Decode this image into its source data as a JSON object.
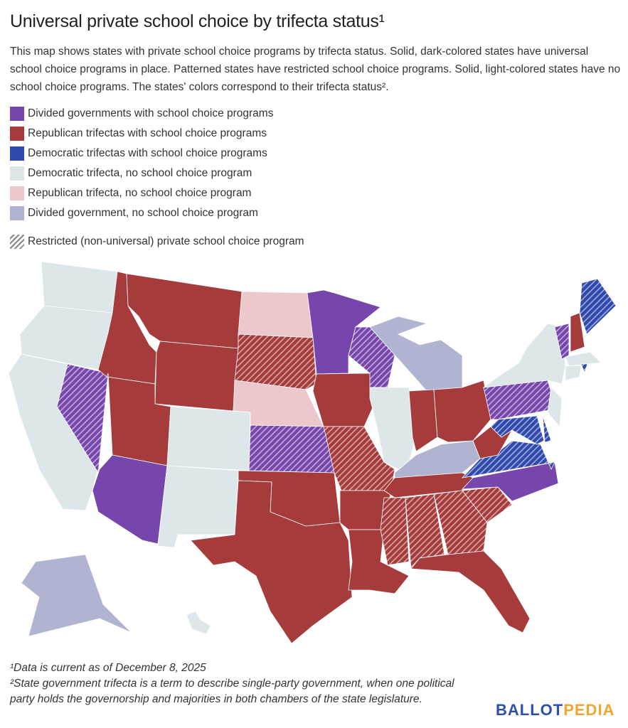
{
  "title": "Universal private school choice by trifecta status¹",
  "description": "This map shows states with private school choice programs by trifecta status. Solid, dark-colored states have universal school choice programs in place. Patterned states have restricted school choice programs. Solid, light-colored states have no school choice programs. The states' colors correspond to their trifecta status².",
  "legend": [
    {
      "key": "div_prog",
      "label": "Divided governments with school choice programs",
      "color": "#7746ad"
    },
    {
      "key": "rep_prog",
      "label": "Republican trifectas with school choice programs",
      "color": "#a63b3c"
    },
    {
      "key": "dem_prog",
      "label": "Democratic trifectas with school choice programs",
      "color": "#3049ad"
    },
    {
      "key": "dem_none",
      "label": "Democratic trifecta, no school choice program",
      "color": "#dde6e9"
    },
    {
      "key": "rep_none",
      "label": "Republican trifecta, no school choice program",
      "color": "#ecc8cc"
    },
    {
      "key": "div_none",
      "label": "Divided government, no school choice program",
      "color": "#b0b4d1"
    }
  ],
  "restricted_label": "Restricted (non-universal) private school choice program",
  "states": {
    "WA": {
      "c": "dem_none",
      "r": false
    },
    "OR": {
      "c": "dem_none",
      "r": false
    },
    "CA": {
      "c": "dem_none",
      "r": false
    },
    "NV": {
      "c": "div_prog",
      "r": true
    },
    "ID": {
      "c": "rep_prog",
      "r": false
    },
    "MT": {
      "c": "rep_prog",
      "r": false
    },
    "WY": {
      "c": "rep_prog",
      "r": false
    },
    "UT": {
      "c": "rep_prog",
      "r": false
    },
    "AZ": {
      "c": "div_prog",
      "r": false
    },
    "CO": {
      "c": "dem_none",
      "r": false
    },
    "NM": {
      "c": "dem_none",
      "r": false
    },
    "ND": {
      "c": "rep_none",
      "r": false
    },
    "SD": {
      "c": "rep_prog",
      "r": true
    },
    "NE": {
      "c": "rep_none",
      "r": false
    },
    "KS": {
      "c": "div_prog",
      "r": true
    },
    "OK": {
      "c": "rep_prog",
      "r": false
    },
    "TX": {
      "c": "rep_prog",
      "r": false
    },
    "MN": {
      "c": "div_prog",
      "r": false
    },
    "IA": {
      "c": "rep_prog",
      "r": false
    },
    "MO": {
      "c": "rep_prog",
      "r": true
    },
    "AR": {
      "c": "rep_prog",
      "r": false
    },
    "LA": {
      "c": "rep_prog",
      "r": false
    },
    "WI": {
      "c": "div_prog",
      "r": true
    },
    "IL": {
      "c": "dem_none",
      "r": false
    },
    "MI": {
      "c": "div_none",
      "r": false
    },
    "IN": {
      "c": "rep_prog",
      "r": false
    },
    "OH": {
      "c": "rep_prog",
      "r": false
    },
    "KY": {
      "c": "div_none",
      "r": false
    },
    "TN": {
      "c": "rep_prog",
      "r": false
    },
    "MS": {
      "c": "rep_prog",
      "r": true
    },
    "AL": {
      "c": "rep_prog",
      "r": true
    },
    "GA": {
      "c": "rep_prog",
      "r": true
    },
    "FL": {
      "c": "rep_prog",
      "r": false
    },
    "SC": {
      "c": "rep_prog",
      "r": true
    },
    "NC": {
      "c": "div_prog",
      "r": false
    },
    "VA": {
      "c": "dem_prog",
      "r": true
    },
    "WV": {
      "c": "rep_prog",
      "r": false
    },
    "PA": {
      "c": "div_prog",
      "r": true
    },
    "NY": {
      "c": "dem_none",
      "r": false
    },
    "MD": {
      "c": "dem_prog",
      "r": true
    },
    "DE": {
      "c": "dem_prog",
      "r": true
    },
    "NJ": {
      "c": "dem_none",
      "r": false
    },
    "VT": {
      "c": "div_prog",
      "r": true
    },
    "NH": {
      "c": "rep_prog",
      "r": false
    },
    "ME": {
      "c": "dem_prog",
      "r": true
    },
    "MA": {
      "c": "dem_none",
      "r": false
    },
    "RI": {
      "c": "dem_prog",
      "r": true
    },
    "CT": {
      "c": "dem_none",
      "r": false
    },
    "AK": {
      "c": "div_none",
      "r": false
    },
    "HI": {
      "c": "dem_none",
      "r": false
    }
  },
  "footnotes": [
    "¹Data is current as of December 8, 2025",
    "²State government trifecta is a term to describe single-party government, when one political party holds the governorship and majorities in both chambers of the state legislature."
  ],
  "logo": {
    "part1": "BALLOT",
    "part2": "PEDIA",
    "color1": "#2f4fad",
    "color2": "#f3a531"
  }
}
